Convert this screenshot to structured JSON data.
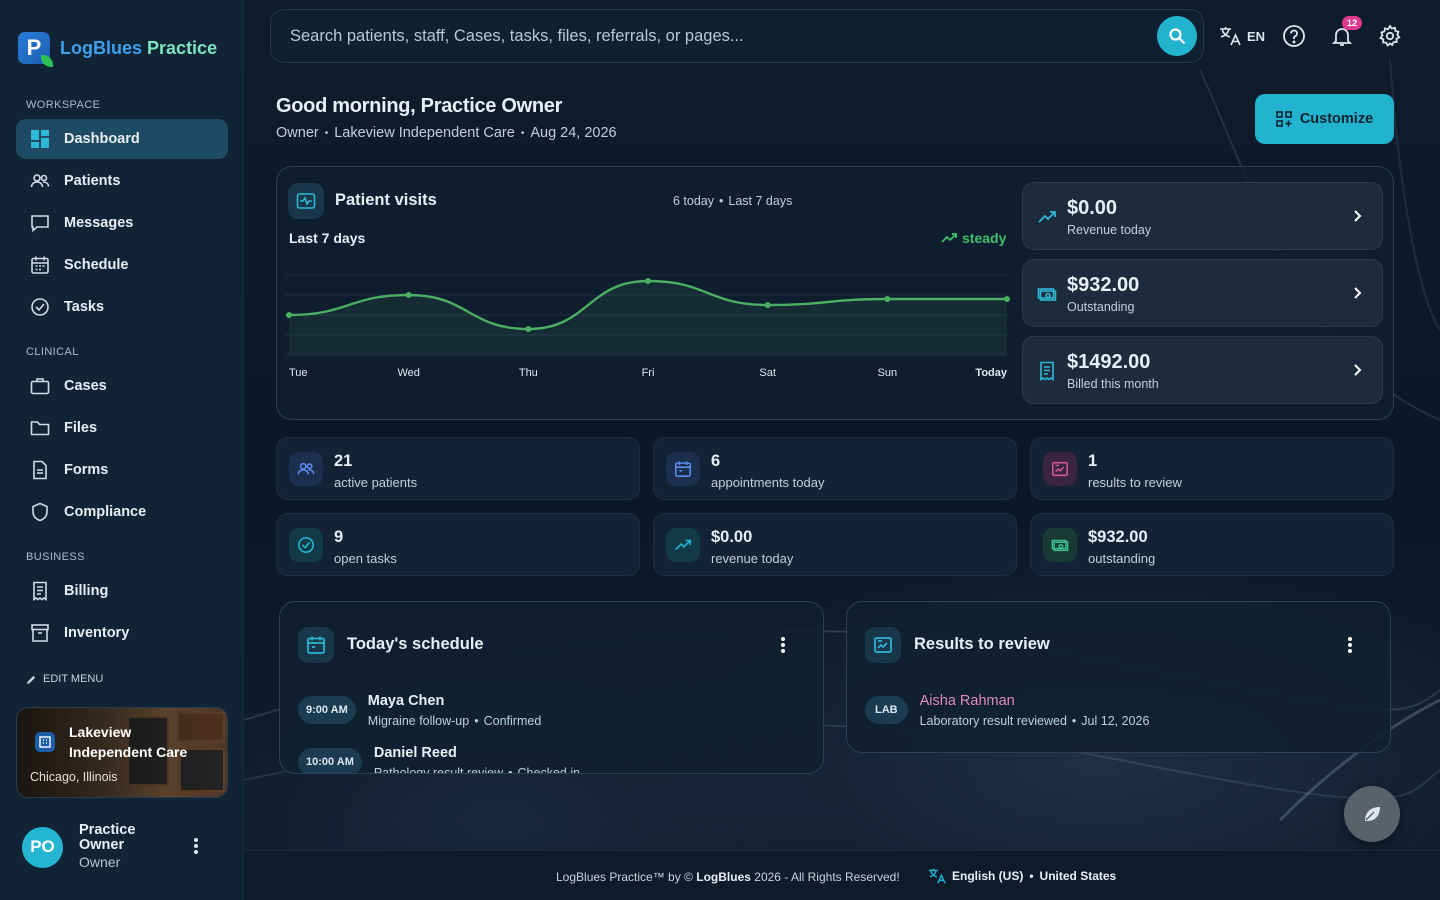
{
  "app": {
    "name_part1": "LogBlues",
    "name_part2": "Practice"
  },
  "sidebar": {
    "sections": {
      "workspace": "WORKSPACE",
      "clinical": "CLINICAL",
      "business": "BUSINESS"
    },
    "items": [
      {
        "label": "Dashboard",
        "icon": "dashboard-icon",
        "active": true
      },
      {
        "label": "Patients",
        "icon": "users-icon"
      },
      {
        "label": "Messages",
        "icon": "message-icon"
      },
      {
        "label": "Schedule",
        "icon": "calendar-icon"
      },
      {
        "label": "Tasks",
        "icon": "check-circle-icon"
      },
      {
        "label": "Cases",
        "icon": "briefcase-icon"
      },
      {
        "label": "Files",
        "icon": "folder-icon"
      },
      {
        "label": "Forms",
        "icon": "document-icon"
      },
      {
        "label": "Compliance",
        "icon": "shield-icon"
      },
      {
        "label": "Billing",
        "icon": "receipt-icon"
      },
      {
        "label": "Inventory",
        "icon": "archive-icon"
      }
    ],
    "edit_menu": "EDIT MENU",
    "practice": {
      "name": "Lakeview Independent Care",
      "location": "Chicago, Illinois"
    },
    "user": {
      "initials": "PO",
      "name": "Practice Owner",
      "role": "Owner"
    }
  },
  "header": {
    "search_placeholder": "Search patients, staff, Cases, tasks, files, referrals, or pages...",
    "language": "EN",
    "notifications_count": "12"
  },
  "greeting": {
    "title": "Good morning, Practice Owner",
    "role": "Owner",
    "practice": "Lakeview Independent Care",
    "date": "Aug 24, 2026",
    "customize_label": "Customize"
  },
  "visits": {
    "title": "Patient visits",
    "today_count": "6 today",
    "period": "Last 7 days",
    "range_label": "Last 7 days",
    "trend": "steady",
    "kpis": [
      {
        "value": "$0.00",
        "label": "Revenue today",
        "icon": "trend-up-icon"
      },
      {
        "value": "$932.00",
        "label": "Outstanding",
        "icon": "cash-icon"
      },
      {
        "value": "$1492.00",
        "label": "Billed this month",
        "icon": "receipt-icon"
      }
    ]
  },
  "chart_data": {
    "type": "line",
    "categories": [
      "Tue",
      "Wed",
      "Thu",
      "Fri",
      "Sat",
      "Sun",
      "Today"
    ],
    "values": [
      4.0,
      5.0,
      3.3,
      5.7,
      4.5,
      4.8,
      4.8
    ],
    "ylim": [
      2,
      7
    ],
    "color": "#4caf64",
    "grid": true
  },
  "stats": [
    {
      "value": "21",
      "label": "active patients",
      "icon": "users-icon",
      "color": "#5b8dee"
    },
    {
      "value": "6",
      "label": "appointments today",
      "icon": "calendar-icon",
      "color": "#5b8dee"
    },
    {
      "value": "1",
      "label": "results to review",
      "icon": "chart-box-icon",
      "color": "#d05a9c"
    },
    {
      "value": "9",
      "label": "open tasks",
      "icon": "check-circle-icon",
      "color": "#22b4cf"
    },
    {
      "value": "$0.00",
      "label": "revenue today",
      "icon": "trend-up-icon",
      "color": "#22b4cf"
    },
    {
      "value": "$932.00",
      "label": "outstanding",
      "icon": "cash-icon",
      "color": "#3fbf8f"
    }
  ],
  "schedule": {
    "title": "Today's schedule",
    "items": [
      {
        "time": "9:00 AM",
        "name": "Maya Chen",
        "reason": "Migraine follow-up",
        "status": "Confirmed"
      },
      {
        "time": "10:00 AM",
        "name": "Daniel Reed",
        "reason": "Pathology result review",
        "status": "Checked in"
      }
    ]
  },
  "results": {
    "title": "Results to review",
    "items": [
      {
        "tag": "LAB",
        "name": "Aisha Rahman",
        "desc": "Laboratory result reviewed",
        "date": "Jul 12, 2026"
      }
    ]
  },
  "footer": {
    "product": "LogBlues Practice™ by ©",
    "brand": "LogBlues",
    "rights": "2026 - All Rights Reserved!",
    "language": "English (US)",
    "region": "United States"
  }
}
